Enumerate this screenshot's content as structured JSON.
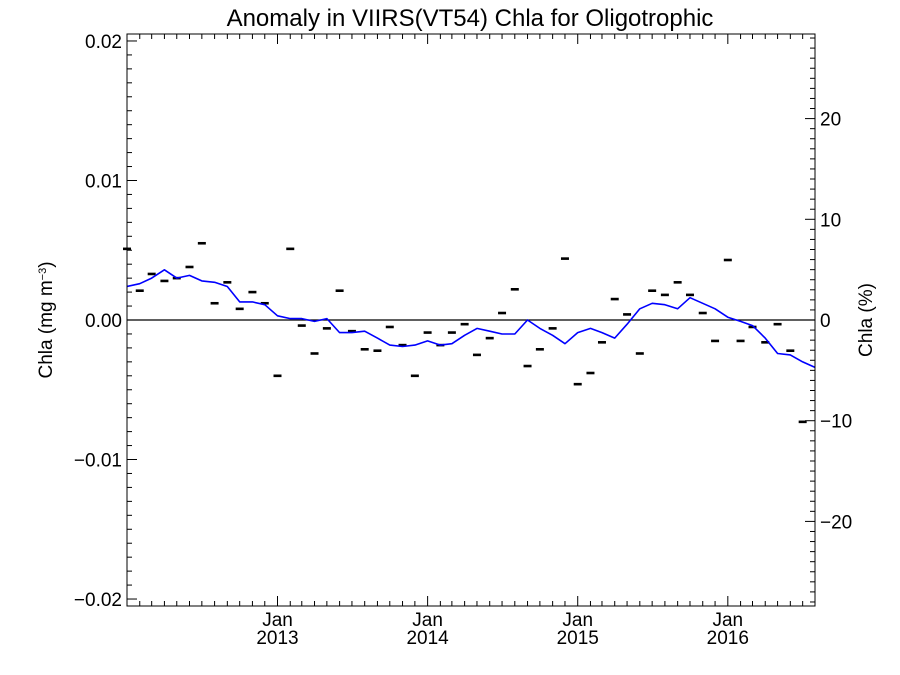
{
  "chart_data": {
    "type": "line",
    "title": "Anomaly in VIIRS(VT54) Chla for Oligotrophic",
    "ylabel_left": {
      "text": "Chla (mg m",
      "sup": "−3",
      "close": ")"
    },
    "ylabel_right": "Chla (%)",
    "xlabel": "",
    "xlim": [
      "2012-01-01",
      "2016-07-31"
    ],
    "ylim": [
      -0.0205,
      0.0205
    ],
    "ylim_right": [
      -28.4,
      28.4
    ],
    "grid": false,
    "legend": "none",
    "zero_line": true,
    "x_tick_labels": [
      {
        "date": "2013-01-01",
        "month": "Jan",
        "year": "2013"
      },
      {
        "date": "2014-01-01",
        "month": "Jan",
        "year": "2014"
      },
      {
        "date": "2015-01-01",
        "month": "Jan",
        "year": "2015"
      },
      {
        "date": "2016-01-01",
        "month": "Jan",
        "year": "2016"
      }
    ],
    "y_ticks_left": [
      {
        "value": 0.02,
        "label": "0.02"
      },
      {
        "value": 0.01,
        "label": "0.01"
      },
      {
        "value": 0.0,
        "label": "0.00"
      },
      {
        "value": -0.01,
        "label": "−0.01"
      },
      {
        "value": -0.02,
        "label": "−0.02"
      }
    ],
    "y_ticks_right": [
      {
        "value": 20,
        "label": "20"
      },
      {
        "value": 10,
        "label": "10"
      },
      {
        "value": 0,
        "label": "0"
      },
      {
        "value": -10,
        "label": "−10"
      },
      {
        "value": -20,
        "label": "−20"
      }
    ],
    "series": [
      {
        "type": "scatter",
        "marker": "dash",
        "color": "#000000",
        "x": [
          "2012-01-01",
          "2012-02-01",
          "2012-03-01",
          "2012-04-01",
          "2012-05-01",
          "2012-06-01",
          "2012-07-01",
          "2012-08-01",
          "2012-09-01",
          "2012-10-01",
          "2012-11-01",
          "2012-12-01",
          "2013-01-01",
          "2013-02-01",
          "2013-03-01",
          "2013-04-01",
          "2013-05-01",
          "2013-06-01",
          "2013-07-01",
          "2013-08-01",
          "2013-09-01",
          "2013-10-01",
          "2013-11-01",
          "2013-12-01",
          "2014-01-01",
          "2014-02-01",
          "2014-03-01",
          "2014-04-01",
          "2014-05-01",
          "2014-06-01",
          "2014-07-01",
          "2014-08-01",
          "2014-09-01",
          "2014-10-01",
          "2014-11-01",
          "2014-12-01",
          "2015-01-01",
          "2015-02-01",
          "2015-03-01",
          "2015-04-01",
          "2015-05-01",
          "2015-06-01",
          "2015-07-01",
          "2015-08-01",
          "2015-09-01",
          "2015-10-01",
          "2015-11-01",
          "2015-12-01",
          "2016-01-01",
          "2016-02-01",
          "2016-03-01",
          "2016-04-01",
          "2016-05-01",
          "2016-06-01",
          "2016-07-01"
        ],
        "values": [
          0.0051,
          0.0021,
          0.0033,
          0.0028,
          0.003,
          0.0038,
          0.0055,
          0.0012,
          0.0027,
          0.0008,
          0.002,
          0.0012,
          -0.004,
          0.0051,
          -0.0004,
          -0.0024,
          -0.0006,
          0.0021,
          -0.0008,
          -0.0021,
          -0.0022,
          -0.0005,
          -0.0018,
          -0.004,
          -0.0009,
          -0.0018,
          -0.0009,
          -0.0003,
          -0.0025,
          -0.0013,
          0.0005,
          0.0022,
          -0.0033,
          -0.0021,
          -0.0006,
          0.0044,
          -0.0046,
          -0.0038,
          -0.0016,
          0.0015,
          0.0004,
          -0.0024,
          0.0021,
          0.0018,
          0.0027,
          0.0018,
          0.0005,
          -0.0015,
          0.0043,
          -0.0015,
          -0.0005,
          -0.0016,
          -0.0003,
          -0.0022,
          -0.0073
        ]
      },
      {
        "type": "line",
        "color": "#0000ff",
        "x": [
          "2012-01-01",
          "2012-02-01",
          "2012-03-01",
          "2012-04-01",
          "2012-05-01",
          "2012-06-01",
          "2012-07-01",
          "2012-08-01",
          "2012-09-01",
          "2012-10-01",
          "2012-11-01",
          "2012-12-01",
          "2013-01-01",
          "2013-02-01",
          "2013-03-01",
          "2013-04-01",
          "2013-05-01",
          "2013-06-01",
          "2013-07-01",
          "2013-08-01",
          "2013-09-01",
          "2013-10-01",
          "2013-11-01",
          "2013-12-01",
          "2014-01-01",
          "2014-02-01",
          "2014-03-01",
          "2014-04-01",
          "2014-05-01",
          "2014-06-01",
          "2014-07-01",
          "2014-08-01",
          "2014-09-01",
          "2014-10-01",
          "2014-11-01",
          "2014-12-01",
          "2015-01-01",
          "2015-02-01",
          "2015-03-01",
          "2015-04-01",
          "2015-05-01",
          "2015-06-01",
          "2015-07-01",
          "2015-08-01",
          "2015-09-01",
          "2015-10-01",
          "2015-11-01",
          "2015-12-01",
          "2016-01-01",
          "2016-02-01",
          "2016-03-01",
          "2016-04-01",
          "2016-05-01",
          "2016-06-01",
          "2016-07-01",
          "2016-07-31"
        ],
        "values": [
          0.0024,
          0.0026,
          0.003,
          0.0036,
          0.003,
          0.0032,
          0.0028,
          0.0027,
          0.0024,
          0.0013,
          0.0013,
          0.0011,
          0.0003,
          0.0001,
          0.0001,
          -0.0001,
          0.0001,
          -0.0009,
          -0.0009,
          -0.0008,
          -0.0013,
          -0.0018,
          -0.0019,
          -0.0018,
          -0.0015,
          -0.0018,
          -0.0017,
          -0.0011,
          -0.0006,
          -0.0008,
          -0.001,
          -0.001,
          0.0,
          -0.0006,
          -0.0011,
          -0.0017,
          -0.0009,
          -0.0006,
          -0.0009,
          -0.0013,
          -0.0003,
          0.0008,
          0.0012,
          0.0011,
          0.0008,
          0.0016,
          0.0012,
          0.0008,
          0.0002,
          -0.0001,
          -0.0004,
          -0.0013,
          -0.0024,
          -0.0025,
          -0.003,
          -0.0034
        ]
      }
    ]
  }
}
